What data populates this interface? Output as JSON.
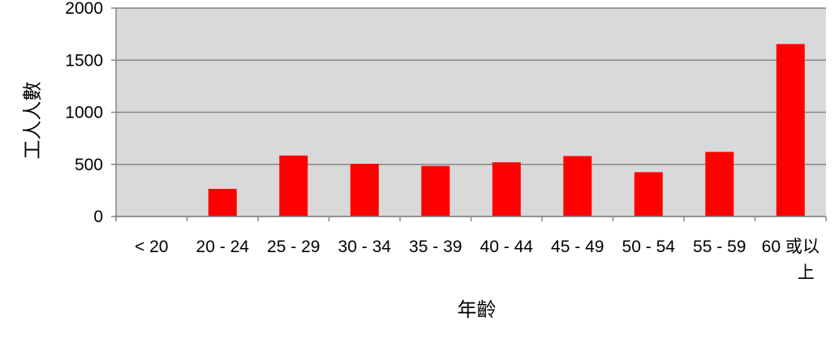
{
  "chart_data": {
    "type": "bar",
    "title": "",
    "xlabel": "年齡",
    "ylabel": "工人人數",
    "categories": [
      "< 20",
      "20 - 24",
      "25 - 29",
      "30 - 34",
      "35 - 39",
      "40 - 44",
      "45 - 49",
      "50 - 54",
      "55 - 59",
      "60 或以上"
    ],
    "values": [
      0,
      265,
      585,
      505,
      485,
      520,
      580,
      425,
      620,
      1655
    ],
    "ylim": [
      0,
      2000
    ],
    "yticks": [
      0,
      500,
      1000,
      1500,
      2000
    ],
    "grid": true,
    "legend": "none",
    "colors": {
      "bar": "#ff0000",
      "plot_background": "#d9d9d9",
      "gridline": "#868686",
      "axis": "#868686"
    }
  }
}
